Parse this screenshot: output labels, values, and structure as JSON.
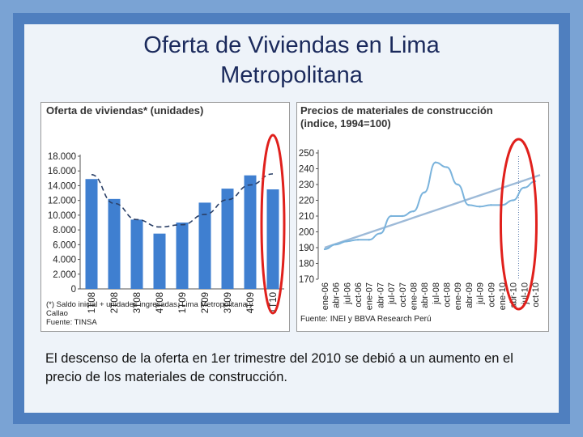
{
  "slide": {
    "title_line1": "Oferta de Viviendas en Lima",
    "title_line2": "Metropolitana",
    "caption": "El descenso de la oferta en 1er trimestre del 2010 se debió a un aumento en el precio de los materiales de construcción."
  },
  "colors": {
    "bar": "#3f7fd0",
    "trend": "#2a3f66",
    "line": "#7ab3dc",
    "trend_line": "#9dbad8",
    "highlight": "#e0201c"
  },
  "chart_data": [
    {
      "type": "bar",
      "title": "Oferta de viviendas* (unidades)",
      "categories": [
        "1T08",
        "2T08",
        "3T08",
        "4T08",
        "1T09",
        "2T09",
        "3T09",
        "4T09",
        "1T10"
      ],
      "values": [
        14900,
        12200,
        9400,
        7500,
        9000,
        11700,
        13600,
        15400,
        13500
      ],
      "trend": [
        15500,
        11600,
        9400,
        8400,
        8700,
        10100,
        12100,
        14100,
        15600
      ],
      "ylim": [
        0,
        18000
      ],
      "yticks": [
        "0",
        "2.000",
        "4.000",
        "6.000",
        "8.000",
        "10.000",
        "12.000",
        "14.000",
        "16.000",
        "18.000"
      ],
      "note_line1": "(*) Saldo inicial + unidades ingresadas. Lima Metropolitana y",
      "note_line2": "Callao",
      "source": "Fuente: TINSA"
    },
    {
      "type": "line",
      "title_line1": "Precios de materiales de construcción",
      "title_line2": "(indice, 1994=100)",
      "x": [
        "ene-06",
        "abr-06",
        "jul-06",
        "oct-06",
        "ene-07",
        "abr-07",
        "jul-07",
        "oct-07",
        "ene-08",
        "abr-08",
        "jul-08",
        "oct-08",
        "ene-09",
        "abr-09",
        "jul-09",
        "oct-09",
        "ene-10",
        "abr-10",
        "jul-10",
        "oct-10"
      ],
      "values": [
        189,
        192,
        194,
        195,
        195,
        199,
        210,
        210,
        213,
        225,
        244,
        241,
        230,
        217,
        216,
        217,
        217,
        220,
        228,
        232
      ],
      "trend_start": 190,
      "trend_end": 236,
      "ylim": [
        170,
        250
      ],
      "yticks": [
        "170",
        "180",
        "190",
        "200",
        "210",
        "220",
        "230",
        "240",
        "250"
      ],
      "source": "Fuente: INEI y BBVA Research Perú"
    }
  ]
}
